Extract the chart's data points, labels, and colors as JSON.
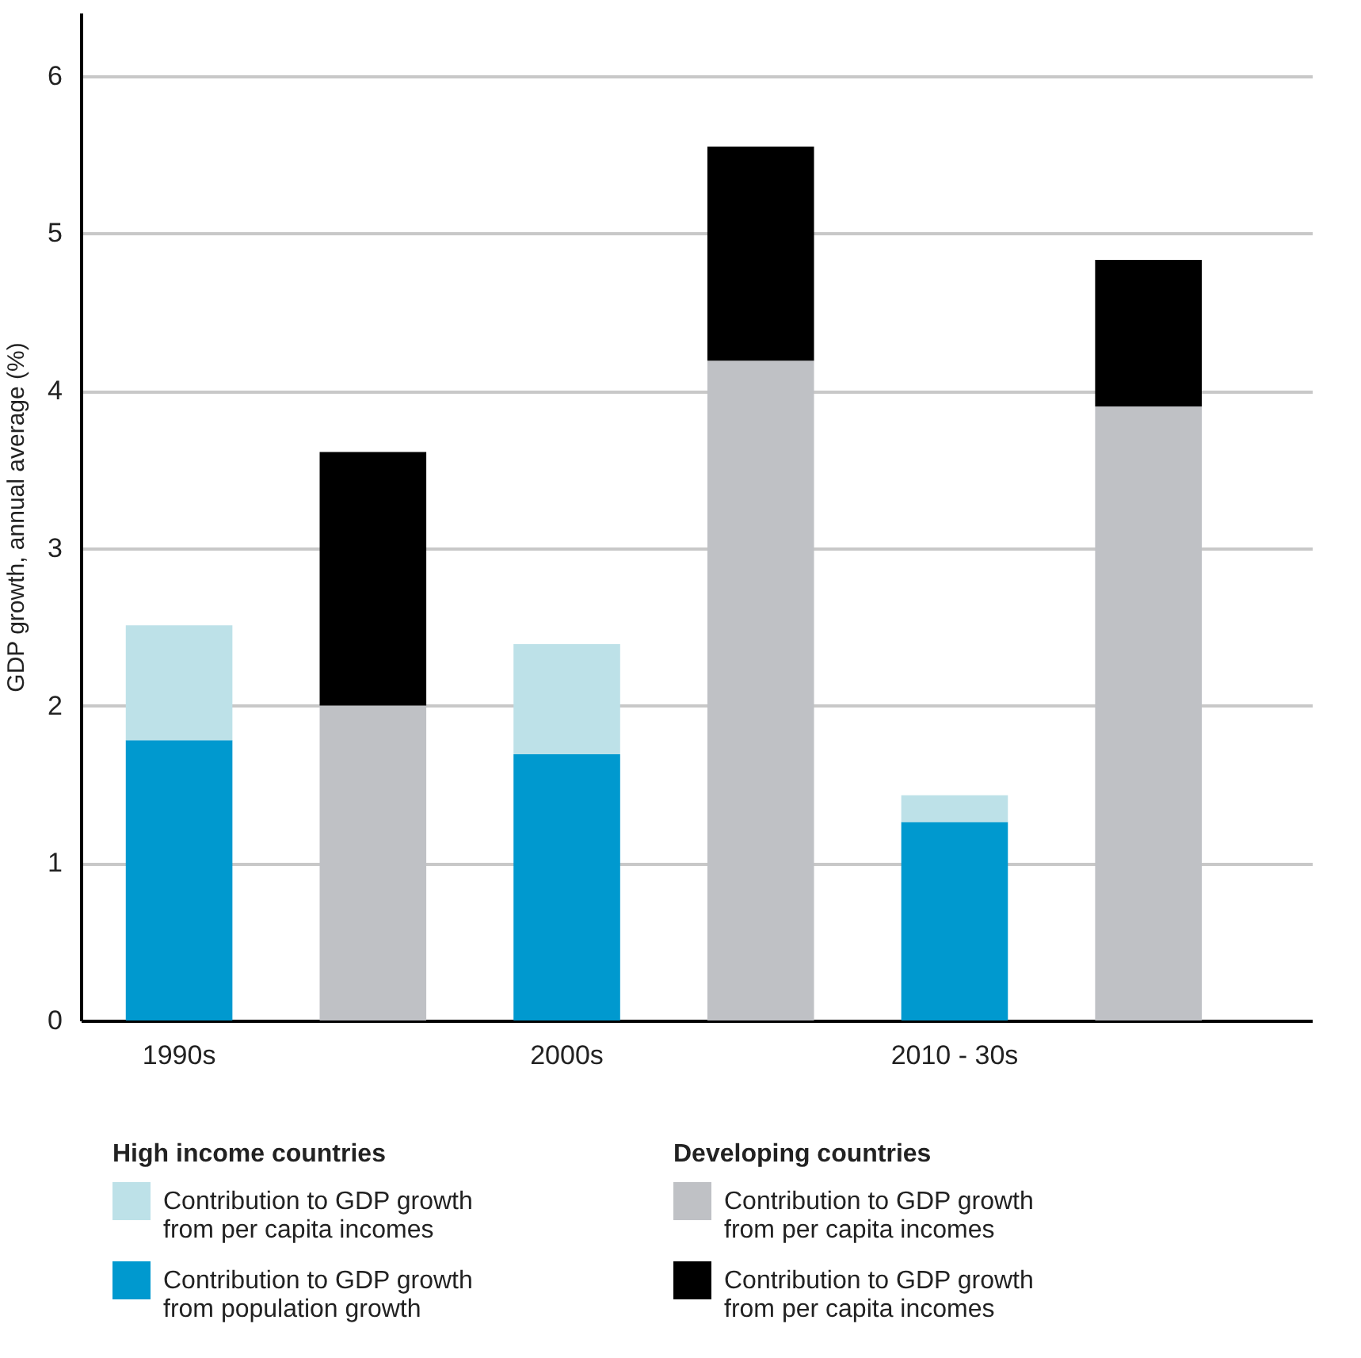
{
  "chart_data": {
    "type": "bar",
    "stacked": true,
    "ylabel": "GDP growth, annual average (%)",
    "categories": [
      "1990s",
      null,
      "2000s",
      null,
      "2010 - 30s",
      null
    ],
    "ylim": [
      0,
      6.4
    ],
    "yticks": [
      0,
      1,
      2,
      3,
      4,
      5,
      6
    ],
    "grid": "y",
    "legend": "bottom",
    "annotations": [
      "High income countries",
      "Developing countries"
    ],
    "series": [
      {
        "name": "Contribution to GDP growth from population growth",
        "color": "#0099cf",
        "values": [
          1.78,
          null,
          1.69,
          null,
          1.26,
          null
        ]
      },
      {
        "name": "Contribution to GDP growth from per capita incomes",
        "color": "#bde1e8",
        "values": [
          0.73,
          null,
          0.7,
          null,
          0.17,
          null
        ]
      },
      {
        "name": "Contribution to GDP growth from per capita incomes",
        "color": "#bfc1c5",
        "values": [
          null,
          2.0,
          null,
          4.19,
          null,
          3.9
        ]
      },
      {
        "name": "Contribution to GDP growth from per capita incomes",
        "color": "#000000",
        "values": [
          null,
          1.61,
          null,
          1.36,
          null,
          0.93
        ]
      }
    ]
  }
}
